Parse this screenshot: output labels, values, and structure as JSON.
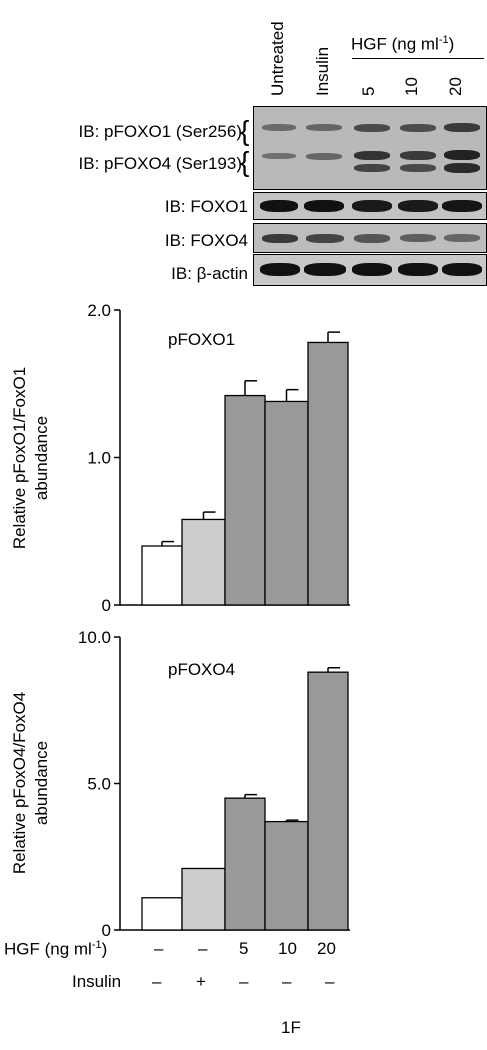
{
  "lanes": [
    "Untreated",
    "Insulin",
    "5",
    "10",
    "20"
  ],
  "hgf_header": "HGF (ng ml",
  "hgf_header_sup": "-1",
  "hgf_header_close": ")",
  "blots": {
    "pfoxo1": "IB: pFOXO1 (Ser256)",
    "pfoxo4": "IB: pFOXO4 (Ser193)",
    "foxo1": "IB: FOXO1",
    "foxo4": "IB: FOXO4",
    "actin": "IB: β-actin"
  },
  "treatments": {
    "hgf_label": "HGF (ng ml",
    "hgf_label_sup": "-1",
    "hgf_label_close": ")",
    "hgf_values": [
      "–",
      "–",
      "5",
      "10",
      "20"
    ],
    "insulin_label": "Insulin",
    "insulin_values": [
      "–",
      "+",
      "–",
      "–",
      "–"
    ]
  },
  "figure_label": "1F",
  "colors": {
    "untreated": "#ffffff",
    "insulin": "#cccccc",
    "hgf": "#999999"
  },
  "chart_data": [
    {
      "type": "bar",
      "title": "pFOXO1",
      "ylabel_line1": "Relative pFoxO1/FoxO1",
      "ylabel_line2": "abundance",
      "ylim": [
        0,
        2.0
      ],
      "yticks": [
        "0",
        "1.0",
        "2.0"
      ],
      "ytick_values": [
        0,
        1.0,
        2.0
      ],
      "values": [
        0.4,
        0.58,
        1.42,
        1.38,
        1.78
      ],
      "errors": [
        0.03,
        0.05,
        0.1,
        0.08,
        0.07
      ]
    },
    {
      "type": "bar",
      "title": "pFOXO4",
      "ylabel_line1": "Relative pFoxO4/FoxO4",
      "ylabel_line2": "abundance",
      "ylim": [
        0,
        10.0
      ],
      "yticks": [
        "0",
        "5.0",
        "10.0"
      ],
      "ytick_values": [
        0,
        5.0,
        10.0
      ],
      "values": [
        1.1,
        2.1,
        4.5,
        3.7,
        8.8
      ],
      "errors": [
        0.0,
        0.0,
        0.12,
        0.05,
        0.15
      ]
    }
  ]
}
